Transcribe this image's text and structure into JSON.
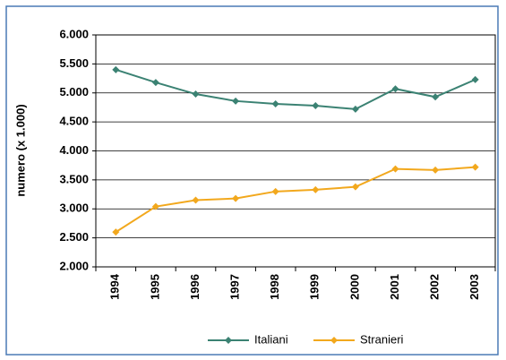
{
  "chart_data": {
    "type": "line",
    "y_label": "numero (x 1.000)",
    "categories": [
      "1994",
      "1995",
      "1996",
      "1997",
      "1998",
      "1999",
      "2000",
      "2001",
      "2002",
      "2003"
    ],
    "series": [
      {
        "name": "Italiani",
        "color": "#3b8273",
        "values": [
          5400,
          5180,
          4980,
          4860,
          4810,
          4780,
          4720,
          5070,
          4930,
          5230
        ]
      },
      {
        "name": "Stranieri",
        "color": "#f2a81d",
        "values": [
          2600,
          3040,
          3150,
          3180,
          3300,
          3330,
          3380,
          3690,
          3670,
          3720
        ]
      }
    ],
    "ylim": [
      2000,
      6000
    ],
    "yticks": [
      {
        "value": 2000,
        "label": "2.000"
      },
      {
        "value": 2500,
        "label": "2.500"
      },
      {
        "value": 3000,
        "label": "3.000"
      },
      {
        "value": 3500,
        "label": "3.500"
      },
      {
        "value": 4000,
        "label": "4.000"
      },
      {
        "value": 4500,
        "label": "4.500"
      },
      {
        "value": 5000,
        "label": "5.000"
      },
      {
        "value": 5500,
        "label": "5.500"
      },
      {
        "value": 6000,
        "label": "6.000"
      }
    ],
    "grid": true,
    "legend": "bottom"
  }
}
